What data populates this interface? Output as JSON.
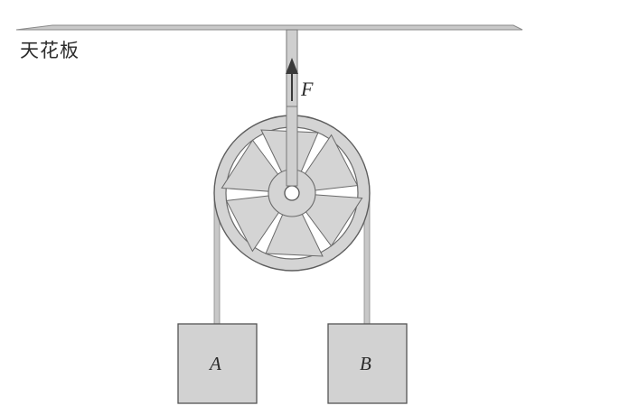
{
  "ceiling": {
    "label": "天花板"
  },
  "force": {
    "label": "F"
  },
  "blocks": [
    {
      "label": "A"
    },
    {
      "label": "B"
    }
  ],
  "colors": {
    "ceiling": "#c9c9c9",
    "rope": "#c4c4c4",
    "pulley": "#d3d3d3",
    "pulley_outline": "#6a6a6a",
    "block": "#d2d2d2",
    "block_outline": "#555555",
    "arrow": "#3a3a3a"
  }
}
